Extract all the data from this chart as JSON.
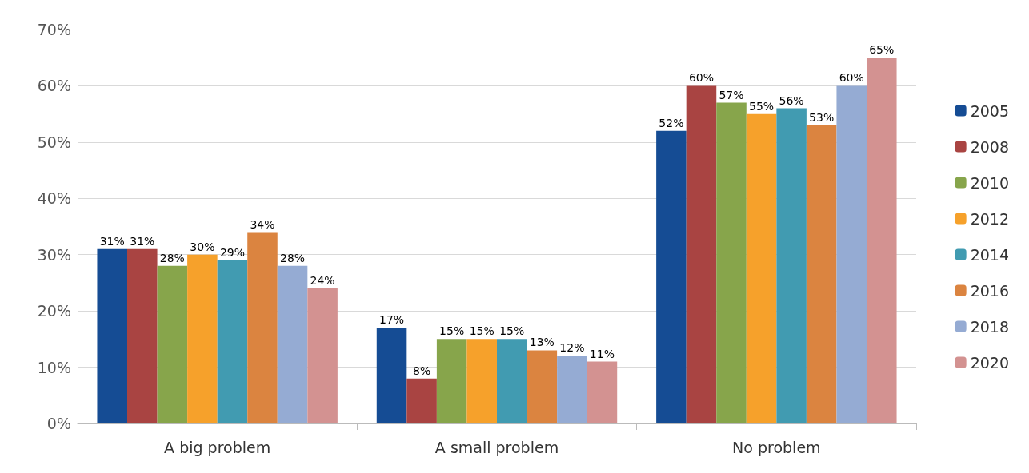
{
  "chart_data": {
    "type": "bar",
    "categories": [
      "A big problem",
      "A small problem",
      "No problem"
    ],
    "series": [
      {
        "name": "2005",
        "color": "#154c94",
        "values": [
          31,
          17,
          52
        ],
        "value_labels": [
          "31%",
          "17%",
          "52%"
        ]
      },
      {
        "name": "2008",
        "color": "#a94442",
        "values": [
          31,
          8,
          60
        ],
        "value_labels": [
          "31%",
          "8%",
          "60%"
        ]
      },
      {
        "name": "2010",
        "color": "#87a54b",
        "values": [
          28,
          15,
          57
        ],
        "value_labels": [
          "28%",
          "15%",
          "57%"
        ]
      },
      {
        "name": "2012",
        "color": "#f6a12b",
        "values": [
          30,
          15,
          55
        ],
        "value_labels": [
          "30%",
          "15%",
          "55%"
        ]
      },
      {
        "name": "2014",
        "color": "#419bb1",
        "values": [
          29,
          15,
          56
        ],
        "value_labels": [
          "29%",
          "15%",
          "56%"
        ]
      },
      {
        "name": "2016",
        "color": "#db8440",
        "values": [
          34,
          13,
          53
        ],
        "value_labels": [
          "34%",
          "13%",
          "53%"
        ]
      },
      {
        "name": "2018",
        "color": "#95abd3",
        "values": [
          28,
          12,
          60
        ],
        "value_labels": [
          "28%",
          "12%",
          "60%"
        ]
      },
      {
        "name": "2020",
        "color": "#d39291",
        "values": [
          24,
          11,
          65
        ],
        "value_labels": [
          "24%",
          "11%",
          "65%"
        ]
      }
    ],
    "ylim": [
      0,
      70
    ],
    "yticks": [
      {
        "value": 0,
        "label": "0%"
      },
      {
        "value": 10,
        "label": "10%"
      },
      {
        "value": 20,
        "label": "20%"
      },
      {
        "value": 30,
        "label": "30%"
      },
      {
        "value": 40,
        "label": "40%"
      },
      {
        "value": 50,
        "label": "50%"
      },
      {
        "value": 60,
        "label": "60%"
      },
      {
        "value": 70,
        "label": "70%"
      }
    ],
    "grid": "y",
    "legend": "right"
  }
}
